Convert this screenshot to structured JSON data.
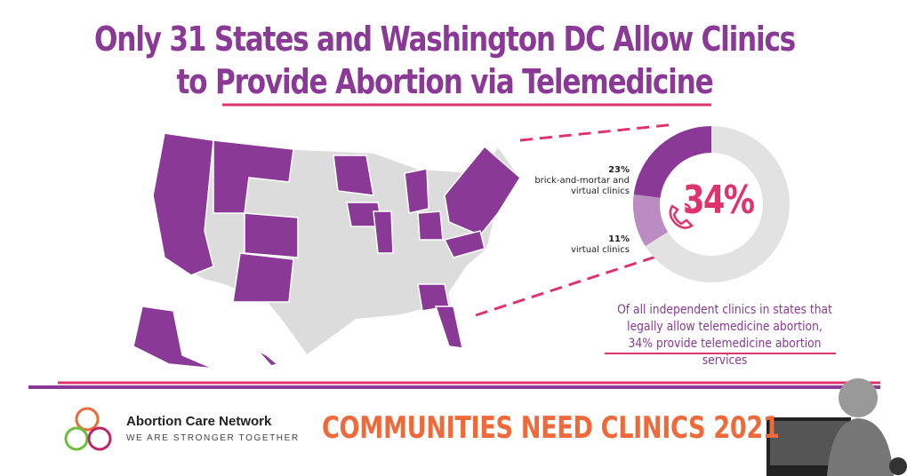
{
  "header": {
    "title_lines": [
      "Only 31 States and Washington DC Allow Clinics",
      "to Provide Abortion via Telemedicine"
    ]
  },
  "chart_data": {
    "type": "donut",
    "series": [
      {
        "name": "brick-and-mortar and virtual clinics",
        "color": "#8a3a96",
        "values": [
          23
        ],
        "value_labels": [
          "23%"
        ]
      },
      {
        "name": "virtual clinics",
        "color": "#bb8cc1",
        "values": [
          11
        ],
        "value_labels": [
          "11%"
        ]
      }
    ],
    "total": 34,
    "total_label": "34%",
    "background_color": "#e2e2e2"
  },
  "note_lines": [
    "Of all independent clinics in states that",
    "legally allow telemedicine abortion,",
    "34% provide telemedicine abortion services"
  ],
  "logo": {
    "name": "Abortion Care Network",
    "tagline": "WE ARE STRONGER TOGETHER"
  },
  "footer": {
    "text": "COMMUNITIES NEED CLINICS 2021"
  }
}
